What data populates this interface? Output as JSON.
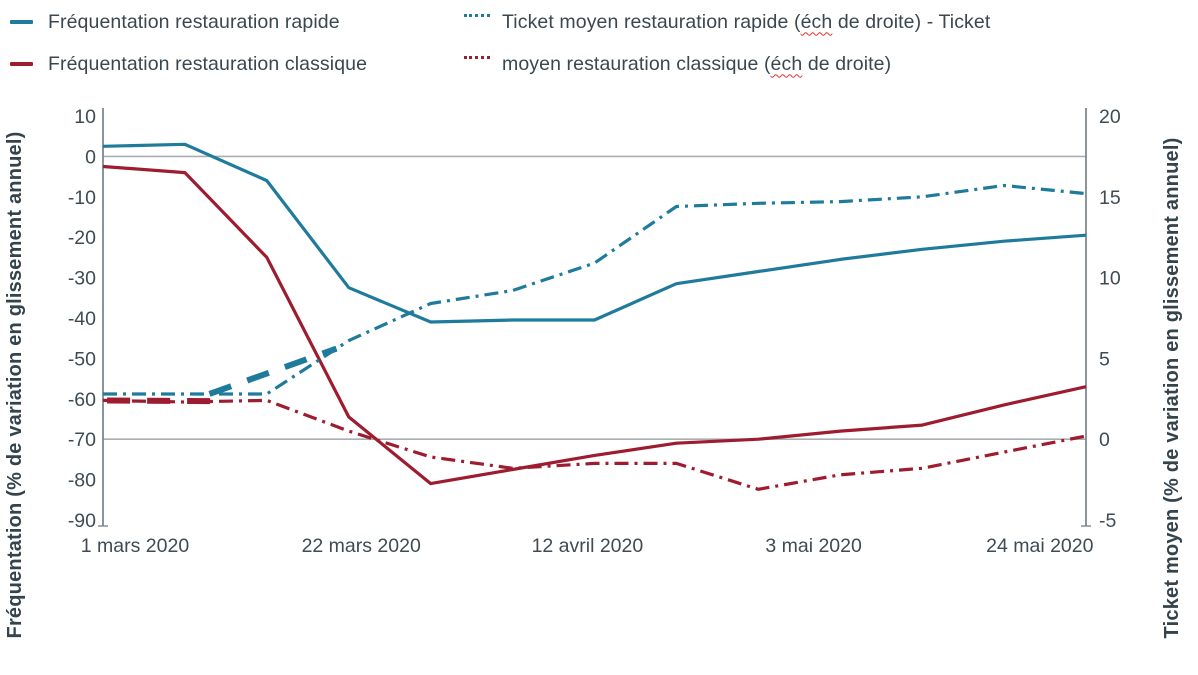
{
  "colors": {
    "rapide": "#1F7B9B",
    "classique": "#9E1C2F",
    "text": "#3B474F",
    "gridline": "#A9AEB2",
    "axis_line": "#7E888D",
    "spellcheck": "#E03131"
  },
  "legend": {
    "left_entries": [
      {
        "label": "Fréquentation restauration rapide",
        "series_color": "#1F7B9B"
      },
      {
        "label": "Fréquentation restauration classique",
        "series_color": "#9E1C2F"
      }
    ],
    "right_entries": [
      {
        "series_color": "#1F7B9B",
        "parts": [
          {
            "t": "Ticket moyen restauration rapide ("
          },
          {
            "t": "éch",
            "wavy": true
          },
          {
            "t": " de droite) - Ticket"
          }
        ]
      },
      {
        "series_color": "#9E1C2F",
        "parts": [
          {
            "t": "moyen restauration classique ("
          },
          {
            "t": "éch",
            "wavy": true
          },
          {
            "t": " de droite)"
          }
        ]
      }
    ]
  },
  "chart_data": {
    "type": "line",
    "n_points": 13,
    "x_ticks": [
      {
        "index": 0,
        "label": "1 mars 2020"
      },
      {
        "index": 3,
        "label": "22 mars 2020"
      },
      {
        "index": 6,
        "label": "12 avril 2020"
      },
      {
        "index": 9,
        "label": "3 mai 2020"
      },
      {
        "index": 12,
        "label": "24 mai 2020"
      }
    ],
    "left_axis": {
      "title": "Fréquentation (% de variation en glissement annuel)",
      "min": -90,
      "max": 10,
      "step": 10,
      "tick_labels": [
        "10",
        "0",
        "-10",
        "-20",
        "-30",
        "-40",
        "-50",
        "-60",
        "-70",
        "-80",
        "-90"
      ]
    },
    "right_axis": {
      "title": "Ticket moyen (% de variation en glissement annuel)",
      "min": -5,
      "max": 20,
      "step": 5,
      "tick_labels": [
        "20",
        "15",
        "10",
        "5",
        "0",
        "-5"
      ]
    },
    "zero_gridlines": [
      {
        "axis": "left",
        "value": 0
      },
      {
        "axis": "right",
        "value": 0
      }
    ],
    "series": [
      {
        "name": "Fréquentation restauration rapide",
        "axis": "left",
        "style": "solid",
        "color": "#1F7B9B",
        "values": [
          2.5,
          3,
          -6,
          -32.5,
          -41,
          -40.5,
          -40.5,
          -31.5,
          -28.5,
          -25.5,
          -23,
          -21,
          -19.5
        ]
      },
      {
        "name": "Fréquentation restauration classique",
        "axis": "left",
        "style": "solid",
        "color": "#9E1C2F",
        "values": [
          -2.5,
          -4,
          -25,
          -64.5,
          -81,
          -77.5,
          -74,
          -71,
          -70,
          -68,
          -66.5,
          -61.5,
          -57
        ]
      },
      {
        "name": "Ticket moyen restauration rapide (éch de droite)",
        "axis": "right",
        "style": "dashed",
        "color": "#1F7B9B",
        "values": [
          2.8,
          2.8,
          2.8,
          6.1,
          8.4,
          9.2,
          10.9,
          14.4,
          14.6,
          14.7,
          15.0,
          15.7,
          15.2
        ]
      },
      {
        "name": "Ticket moyen restauration classique (éch de droite)",
        "axis": "right",
        "style": "dashed",
        "color": "#9E1C2F",
        "values": [
          2.4,
          2.3,
          2.4,
          0.5,
          -1.1,
          -1.8,
          -1.5,
          -1.5,
          -3.1,
          -2.2,
          -1.8,
          -0.8,
          0.2
        ]
      }
    ],
    "bold_dash_artifacts": [
      {
        "series_index": 2,
        "from_point": 1.3,
        "to_point": 2.85
      },
      {
        "series_index": 3,
        "from_point": 0.05,
        "to_point": 1.5
      }
    ]
  }
}
